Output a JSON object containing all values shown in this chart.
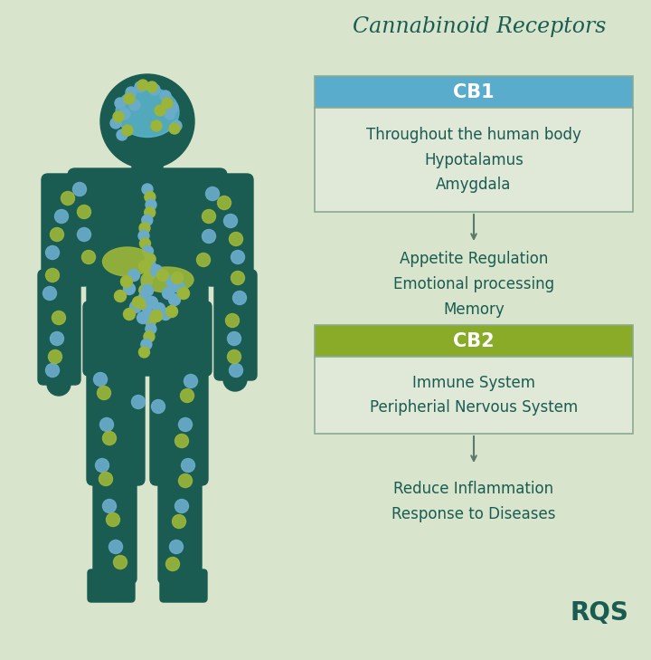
{
  "title": "Cannabinoid Receptors",
  "bg_color": "#d8e5cc",
  "body_color": "#1a5c52",
  "blue_dot_color": "#6aabca",
  "green_dot_color": "#9ab53a",
  "brain_color": "#5ab5cc",
  "organ_color": "#9ab53a",
  "cb1_header_color": "#5aaccc",
  "cb1_header_text": "CB1",
  "cb1_body_text": "Throughout the human body\nHypotalamus\nAmygdala",
  "cb1_effect_text": "Appetite Regulation\nEmotional processing\nMemory",
  "cb2_header_color": "#8aab28",
  "cb2_header_text": "CB2",
  "cb2_body_text": "Immune System\nPeripherial Nervous System",
  "cb2_effect_text": "Reduce Inflammation\nResponse to Diseases",
  "box_border_color": "#8aaa90",
  "box_bg_color": "#e0e8d8",
  "text_color": "#1a5c52",
  "title_fontsize": 17,
  "header_fontsize": 15,
  "body_fontsize": 12,
  "rqs_text": "RQS",
  "rqs_color": "#1a5c52",
  "arrow_color": "#5a7a6a"
}
